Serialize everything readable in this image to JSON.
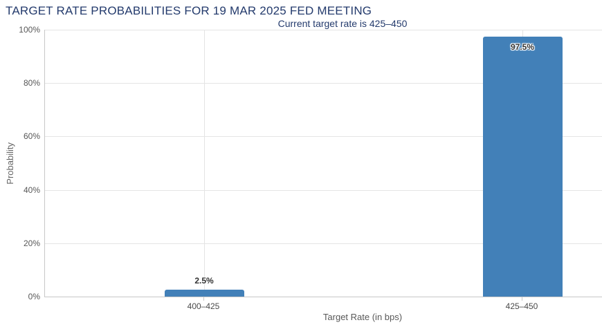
{
  "chart_data": {
    "type": "bar",
    "title": "TARGET RATE PROBABILITIES FOR 19 MAR 2025 FED MEETING",
    "subtitle": "Current target rate is 425–450",
    "categories": [
      "400–425",
      "425–450"
    ],
    "values": [
      2.5,
      97.5
    ],
    "value_labels": [
      "2.5%",
      "97.5%"
    ],
    "xlabel": "Target Rate (in bps)",
    "ylabel": "Probability",
    "ylim": [
      0,
      100
    ],
    "yticks": [
      0,
      20,
      40,
      60,
      80,
      100
    ],
    "ytick_labels": [
      "0%",
      "20%",
      "40%",
      "60%",
      "80%",
      "100%"
    ],
    "grid": true,
    "legend": false
  },
  "colors": {
    "background": "#ffffff",
    "title_text": "#233a6c",
    "bar_fill": "#4280b8",
    "gridline": "#e4e4e4",
    "axis_line": "#c7c7c7",
    "xtick_text": "#4a4a4a",
    "ytick_text": "#565656",
    "axis_title_text": "#585858",
    "data_label_text": "#333333"
  }
}
